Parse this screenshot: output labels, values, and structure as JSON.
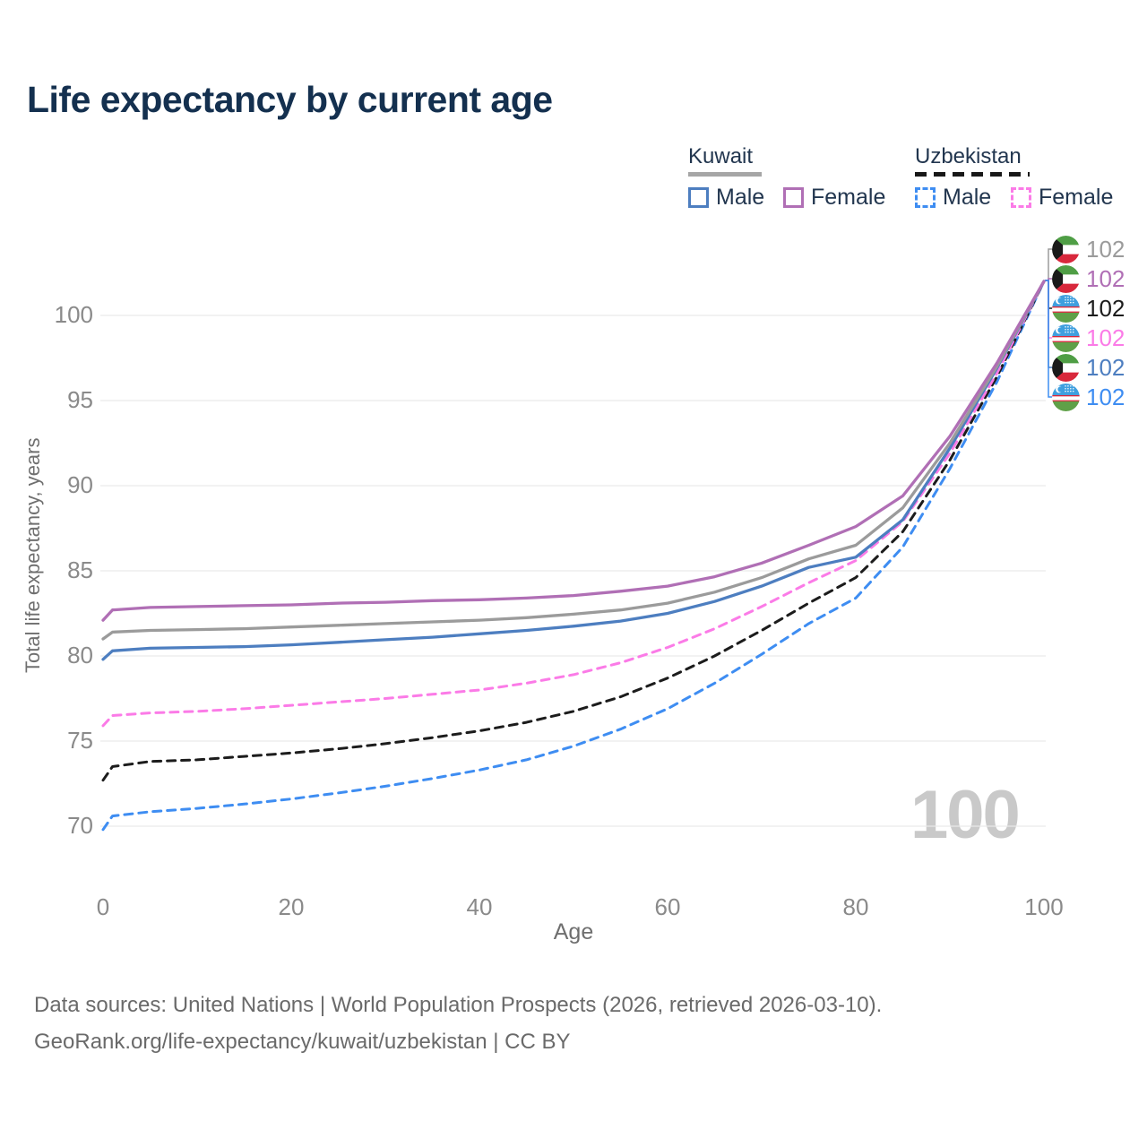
{
  "title": "Life expectancy by current age",
  "legend": {
    "kuwait": {
      "label": "Kuwait",
      "male": "Male",
      "female": "Female"
    },
    "uzbekistan": {
      "label": "Uzbekistan",
      "male": "Male",
      "female": "Female"
    }
  },
  "watermark": "100",
  "footer": {
    "line1": "Data sources: United Nations | World Population Prospects (2026, retrieved 2026-03-10).",
    "line2": "GeoRank.org/life-expectancy/kuwait/uzbekistan | CC BY"
  },
  "chart_data": {
    "type": "line",
    "title": "Life expectancy by current age",
    "xlabel": "Age",
    "ylabel": "Total life expectancy, years",
    "x_ticks": [
      0,
      20,
      40,
      60,
      80,
      100
    ],
    "y_ticks": [
      70,
      75,
      80,
      85,
      90,
      95,
      100
    ],
    "xlim": [
      0,
      100
    ],
    "ylim": [
      68.5,
      103
    ],
    "grid": "horizontal",
    "legend_position": "top-right",
    "ages": [
      0,
      1,
      5,
      10,
      15,
      20,
      25,
      30,
      35,
      40,
      45,
      50,
      55,
      60,
      65,
      70,
      75,
      80,
      85,
      90,
      95,
      100
    ],
    "series": [
      {
        "id": "kuwait-total",
        "name": "Kuwait (both sexes)",
        "country": "kuwait",
        "sex": "total",
        "color": "#9b9b9b",
        "dashed": false,
        "z": 4,
        "row": 0,
        "end_value": "102",
        "values": [
          81.0,
          81.4,
          81.5,
          81.55,
          81.6,
          81.7,
          81.8,
          81.9,
          82.0,
          82.1,
          82.25,
          82.45,
          82.7,
          83.1,
          83.75,
          84.6,
          85.7,
          86.5,
          88.7,
          92.5,
          97.0,
          102
        ]
      },
      {
        "id": "kuwait-female",
        "name": "Kuwait Female",
        "country": "kuwait",
        "sex": "female",
        "color": "#b06fb5",
        "dashed": false,
        "z": 5,
        "row": 1,
        "end_value": "102",
        "values": [
          82.1,
          82.7,
          82.85,
          82.9,
          82.95,
          83.0,
          83.1,
          83.15,
          83.25,
          83.3,
          83.4,
          83.55,
          83.8,
          84.1,
          84.65,
          85.45,
          86.5,
          87.6,
          89.4,
          92.9,
          97.2,
          102
        ]
      },
      {
        "id": "uzbekistan-total",
        "name": "Uzbekistan (both sexes)",
        "country": "uzbekistan",
        "sex": "total",
        "color": "#1c1c1c",
        "dashed": true,
        "z": 1,
        "row": 2,
        "end_value": "102",
        "values": [
          72.7,
          73.5,
          73.8,
          73.9,
          74.1,
          74.3,
          74.55,
          74.85,
          75.2,
          75.6,
          76.1,
          76.75,
          77.6,
          78.7,
          80.0,
          81.5,
          83.1,
          84.6,
          87.3,
          91.5,
          96.4,
          102
        ]
      },
      {
        "id": "uzbekistan-female",
        "name": "Uzbekistan Female",
        "country": "uzbekistan",
        "sex": "female",
        "color": "#fb7be7",
        "dashed": true,
        "z": 2,
        "row": 3,
        "end_value": "102",
        "values": [
          75.9,
          76.5,
          76.65,
          76.75,
          76.9,
          77.1,
          77.3,
          77.5,
          77.75,
          78.0,
          78.4,
          78.9,
          79.6,
          80.5,
          81.6,
          82.9,
          84.3,
          85.6,
          87.9,
          91.9,
          96.6,
          102
        ]
      },
      {
        "id": "kuwait-male",
        "name": "Kuwait Male",
        "country": "kuwait",
        "sex": "male",
        "color": "#4d7ec0",
        "dashed": false,
        "z": 3,
        "row": 4,
        "end_value": "102",
        "values": [
          79.8,
          80.3,
          80.45,
          80.5,
          80.55,
          80.65,
          80.8,
          80.95,
          81.1,
          81.3,
          81.5,
          81.75,
          82.05,
          82.5,
          83.2,
          84.1,
          85.2,
          85.8,
          88.0,
          92.2,
          96.9,
          102
        ]
      },
      {
        "id": "uzbekistan-male",
        "name": "Uzbekistan Male",
        "country": "uzbekistan",
        "sex": "male",
        "color": "#3e8df2",
        "dashed": true,
        "z": 0,
        "row": 5,
        "end_value": "102",
        "values": [
          69.8,
          70.6,
          70.85,
          71.05,
          71.3,
          71.6,
          71.95,
          72.35,
          72.8,
          73.3,
          73.9,
          74.7,
          75.7,
          76.9,
          78.4,
          80.1,
          81.9,
          83.4,
          86.4,
          91.0,
          96.1,
          102
        ]
      }
    ]
  }
}
